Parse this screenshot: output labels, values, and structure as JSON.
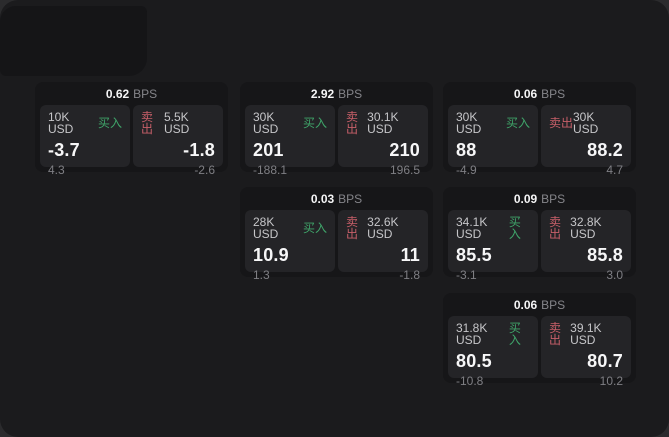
{
  "labels": {
    "bps": "BPS",
    "buy": "买入",
    "sell": "卖出"
  },
  "colors": {
    "outer_bg": "#2b2b2d",
    "window_bg": "#1b1b1d",
    "card_bg": "#161618",
    "panel_bg": "#242427",
    "buy_green": "#3fa56a",
    "sell_red": "#c75f69"
  },
  "cards": [
    {
      "bps": "0.62",
      "buy": {
        "amount": "10K USD",
        "value": "-3.7",
        "sub": "4.3"
      },
      "sell": {
        "amount": "5.5K USD",
        "value": "-1.8",
        "sub": "-2.6"
      }
    },
    {
      "bps": "2.92",
      "buy": {
        "amount": "30K USD",
        "value": "201",
        "sub": "-188.1"
      },
      "sell": {
        "amount": "30.1K USD",
        "value": "210",
        "sub": "196.5"
      }
    },
    {
      "bps": "0.06",
      "buy": {
        "amount": "30K USD",
        "value": "88",
        "sub": "-4.9"
      },
      "sell": {
        "amount": "30K USD",
        "value": "88.2",
        "sub": "4.7"
      }
    },
    {
      "bps": "0.03",
      "buy": {
        "amount": "28K USD",
        "value": "10.9",
        "sub": "1.3"
      },
      "sell": {
        "amount": "32.6K USD",
        "value": "11",
        "sub": "-1.8"
      }
    },
    {
      "bps": "0.09",
      "buy": {
        "amount": "34.1K USD",
        "value": "85.5",
        "sub": "-3.1"
      },
      "sell": {
        "amount": "32.8K USD",
        "value": "85.8",
        "sub": "3.0"
      }
    },
    {
      "bps": "0.06",
      "buy": {
        "amount": "31.8K USD",
        "value": "80.5",
        "sub": "-10.8"
      },
      "sell": {
        "amount": "39.1K USD",
        "value": "80.7",
        "sub": "10.2"
      }
    }
  ]
}
